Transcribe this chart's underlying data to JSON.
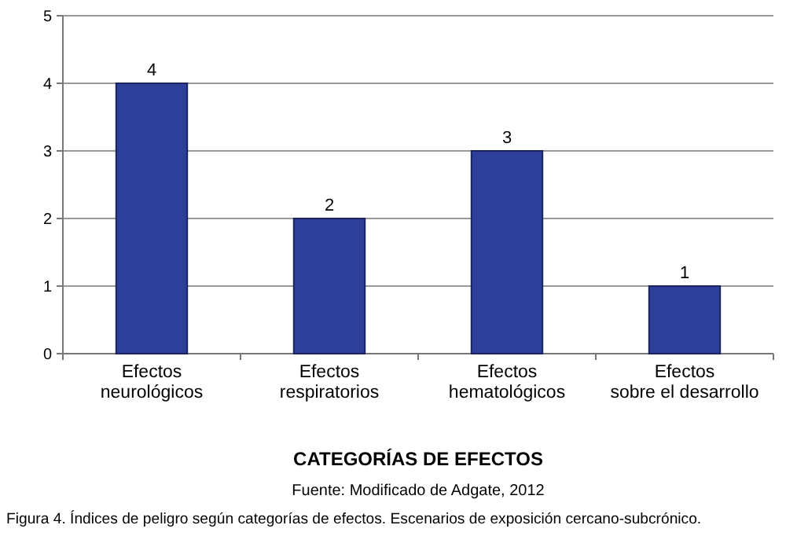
{
  "chart_data": {
    "type": "bar",
    "xlabel": "CATEGORÍAS DE EFECTOS",
    "categories": [
      "Efectos\nneurológicos",
      "Efectos\nrespiratorios",
      "Efectos\nhematológicos",
      "Efectos\nsobre el desarrollo"
    ],
    "values": [
      4,
      2,
      3,
      1
    ],
    "color": "#2e3f99",
    "ylim": [
      0,
      5
    ],
    "yticks": [
      0,
      1,
      2,
      3,
      4,
      5
    ],
    "grid": "y",
    "data_labels": true,
    "annotations": [
      "Fuente: Modificado de Adgate, 2012",
      "Figura 4. Índices de peligro según categorías de efectos. Escenarios de exposición cercano-subcrónico."
    ]
  }
}
